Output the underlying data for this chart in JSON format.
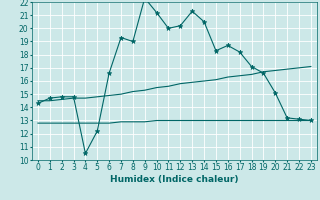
{
  "title": "",
  "xlabel": "Humidex (Indice chaleur)",
  "xlim": [
    -0.5,
    23.5
  ],
  "ylim": [
    10,
    22
  ],
  "yticks": [
    10,
    11,
    12,
    13,
    14,
    15,
    16,
    17,
    18,
    19,
    20,
    21,
    22
  ],
  "xticks": [
    0,
    1,
    2,
    3,
    4,
    5,
    6,
    7,
    8,
    9,
    10,
    11,
    12,
    13,
    14,
    15,
    16,
    17,
    18,
    19,
    20,
    21,
    22,
    23
  ],
  "bg_color": "#cce8e8",
  "line_color": "#006666",
  "curve1_x": [
    0,
    1,
    2,
    3,
    4,
    5,
    6,
    7,
    8,
    9,
    10,
    11,
    12,
    13,
    14,
    15,
    16,
    17,
    18,
    19,
    20,
    21,
    22,
    23
  ],
  "curve1_y": [
    14.3,
    14.7,
    14.8,
    14.8,
    10.5,
    12.2,
    16.6,
    19.3,
    19.0,
    22.3,
    21.2,
    20.0,
    20.2,
    21.3,
    20.5,
    18.3,
    18.7,
    18.2,
    17.1,
    16.6,
    15.1,
    13.2,
    13.1,
    13.0
  ],
  "curve2_x": [
    0,
    1,
    2,
    3,
    4,
    5,
    6,
    7,
    8,
    9,
    10,
    11,
    12,
    13,
    14,
    15,
    16,
    17,
    18,
    19,
    20,
    21,
    22,
    23
  ],
  "curve2_y": [
    14.5,
    14.5,
    14.6,
    14.7,
    14.7,
    14.8,
    14.9,
    15.0,
    15.2,
    15.3,
    15.5,
    15.6,
    15.8,
    15.9,
    16.0,
    16.1,
    16.3,
    16.4,
    16.5,
    16.7,
    16.8,
    16.9,
    17.0,
    17.1
  ],
  "curve3_x": [
    0,
    1,
    2,
    3,
    4,
    5,
    6,
    7,
    8,
    9,
    10,
    11,
    12,
    13,
    14,
    15,
    16,
    17,
    18,
    19,
    20,
    21,
    22,
    23
  ],
  "curve3_y": [
    12.8,
    12.8,
    12.8,
    12.8,
    12.8,
    12.8,
    12.8,
    12.9,
    12.9,
    12.9,
    13.0,
    13.0,
    13.0,
    13.0,
    13.0,
    13.0,
    13.0,
    13.0,
    13.0,
    13.0,
    13.0,
    13.0,
    13.0,
    13.0
  ]
}
